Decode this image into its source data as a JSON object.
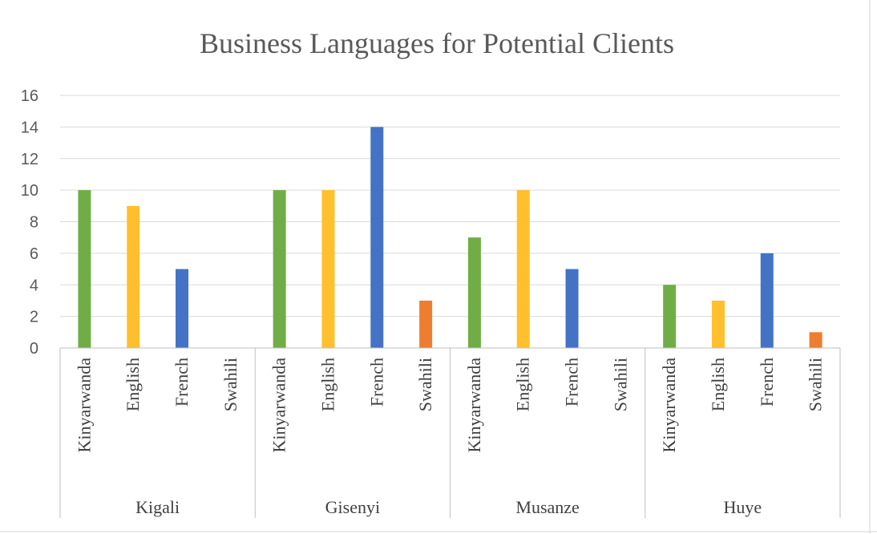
{
  "chart_data": {
    "type": "bar",
    "title": "Business Languages for Potential Clients",
    "ylim": [
      0,
      16
    ],
    "yticks": [
      "0",
      "2",
      "4",
      "6",
      "8",
      "10",
      "12",
      "14",
      "16"
    ],
    "grid": true,
    "groups": [
      {
        "name": "Kigali",
        "categories": [
          "Kinyarwanda",
          "English",
          "French",
          "Swahili"
        ],
        "values": [
          10,
          9,
          5,
          0
        ]
      },
      {
        "name": "Gisenyi",
        "categories": [
          "Kinyarwanda",
          "English",
          "French",
          "Swahili"
        ],
        "values": [
          10,
          10,
          14,
          3
        ]
      },
      {
        "name": "Musanze",
        "categories": [
          "Kinyarwanda",
          "English",
          "French",
          "Swahili"
        ],
        "values": [
          7,
          10,
          5,
          0
        ]
      },
      {
        "name": "Huye",
        "categories": [
          "Kinyarwanda",
          "English",
          "French",
          "Swahili"
        ],
        "values": [
          4,
          3,
          6,
          1
        ]
      }
    ],
    "category_colors": {
      "Kinyarwanda": "#70ad47",
      "English": "#ffc02e",
      "French": "#4472c4",
      "Swahili": "#ed7d31"
    }
  }
}
